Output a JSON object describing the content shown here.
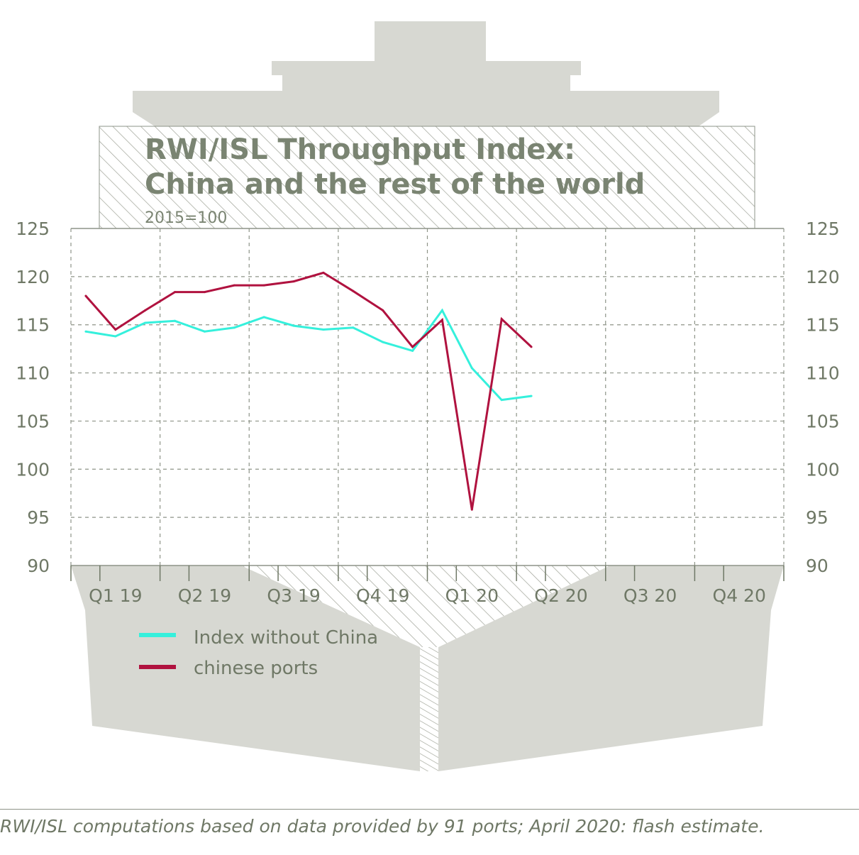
{
  "chart_data": {
    "type": "line",
    "title_line1": "RWI/ISL Throughput Index:",
    "title_line2": "China and the rest of the world",
    "subtitle": "2015=100",
    "ylim": [
      90,
      125
    ],
    "yticks": [
      "90",
      "95",
      "100",
      "105",
      "110",
      "115",
      "120",
      "125"
    ],
    "quarters": [
      "Q1 19",
      "Q2 19",
      "Q3 19",
      "Q4 19",
      "Q1 20",
      "Q2 20",
      "Q3 20",
      "Q4 20"
    ],
    "months": [
      "2019-01",
      "2019-02",
      "2019-03",
      "2019-04",
      "2019-05",
      "2019-06",
      "2019-07",
      "2019-08",
      "2019-09",
      "2019-10",
      "2019-11",
      "2019-12",
      "2020-01",
      "2020-02",
      "2020-03",
      "2020-04"
    ],
    "grid": true,
    "series": [
      {
        "name": "Index without China",
        "color": "#35f0dc",
        "values": [
          114.3,
          113.8,
          115.2,
          115.4,
          114.3,
          114.7,
          115.8,
          114.9,
          114.5,
          114.7,
          113.2,
          112.3,
          116.5,
          110.5,
          107.2,
          107.6
        ]
      },
      {
        "name": "chinese ports",
        "color": "#b0123f",
        "values": [
          118.0,
          114.5,
          116.5,
          118.4,
          118.4,
          119.1,
          119.1,
          119.5,
          120.4,
          118.5,
          116.5,
          112.7,
          115.5,
          95.8,
          115.6,
          112.7
        ]
      }
    ]
  },
  "legend": {
    "items": [
      {
        "label": "Index without China",
        "color": "#35f0dc"
      },
      {
        "label": "chinese ports",
        "color": "#b0123f"
      }
    ]
  },
  "source": "RWI/ISL computations based on data provided by 91 ports; April 2020: flash estimate."
}
